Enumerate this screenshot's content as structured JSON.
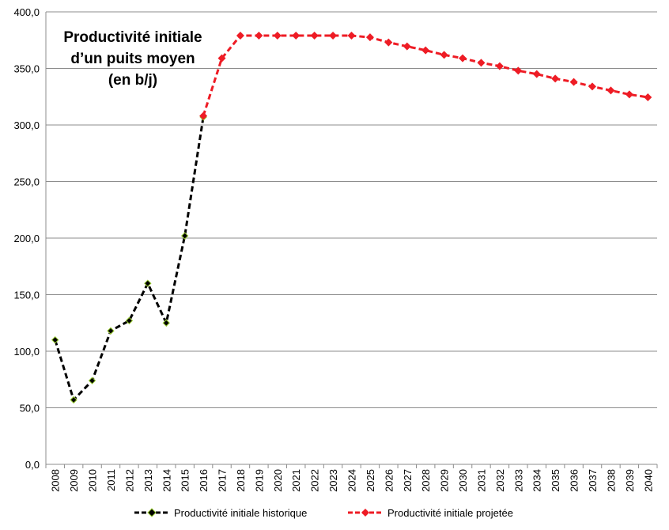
{
  "chart_data": {
    "type": "line",
    "title": [
      "Productivité initiale",
      "d’un puits moyen",
      "(en b/j)"
    ],
    "xlabel": "",
    "ylabel": "",
    "ylim": [
      0,
      400
    ],
    "yticks": [
      "0,0",
      "50,0",
      "100,0",
      "150,0",
      "200,0",
      "250,0",
      "300,0",
      "350,0",
      "400,0"
    ],
    "grid": "horizontal",
    "legend_position": "bottom",
    "categories": [
      "2008",
      "2009",
      "2010",
      "2011",
      "2012",
      "2013",
      "2014",
      "2015",
      "2016",
      "2017",
      "2018",
      "2019",
      "2020",
      "2021",
      "2022",
      "2023",
      "2024",
      "2025",
      "2026",
      "2027",
      "2028",
      "2029",
      "2030",
      "2031",
      "2032",
      "2033",
      "2034",
      "2035",
      "2036",
      "2037",
      "2038",
      "2039",
      "2040"
    ],
    "series": [
      {
        "name": "Productivité initiale historique",
        "color": "#000000",
        "marker_edge": "#9acd32",
        "values": [
          110,
          57,
          74,
          118,
          127,
          160,
          125,
          202,
          307,
          null,
          null,
          null,
          null,
          null,
          null,
          null,
          null,
          null,
          null,
          null,
          null,
          null,
          null,
          null,
          null,
          null,
          null,
          null,
          null,
          null,
          null,
          null,
          null
        ]
      },
      {
        "name": "Productivité initiale projetée",
        "color": "#ee1c25",
        "values": [
          null,
          null,
          null,
          null,
          null,
          null,
          null,
          null,
          308,
          359,
          379,
          379,
          379,
          379,
          379,
          379,
          379,
          377.5,
          373,
          369.5,
          366,
          362,
          359,
          355,
          352,
          348,
          345,
          341,
          338,
          334,
          330.5,
          327,
          324.5
        ]
      }
    ]
  }
}
